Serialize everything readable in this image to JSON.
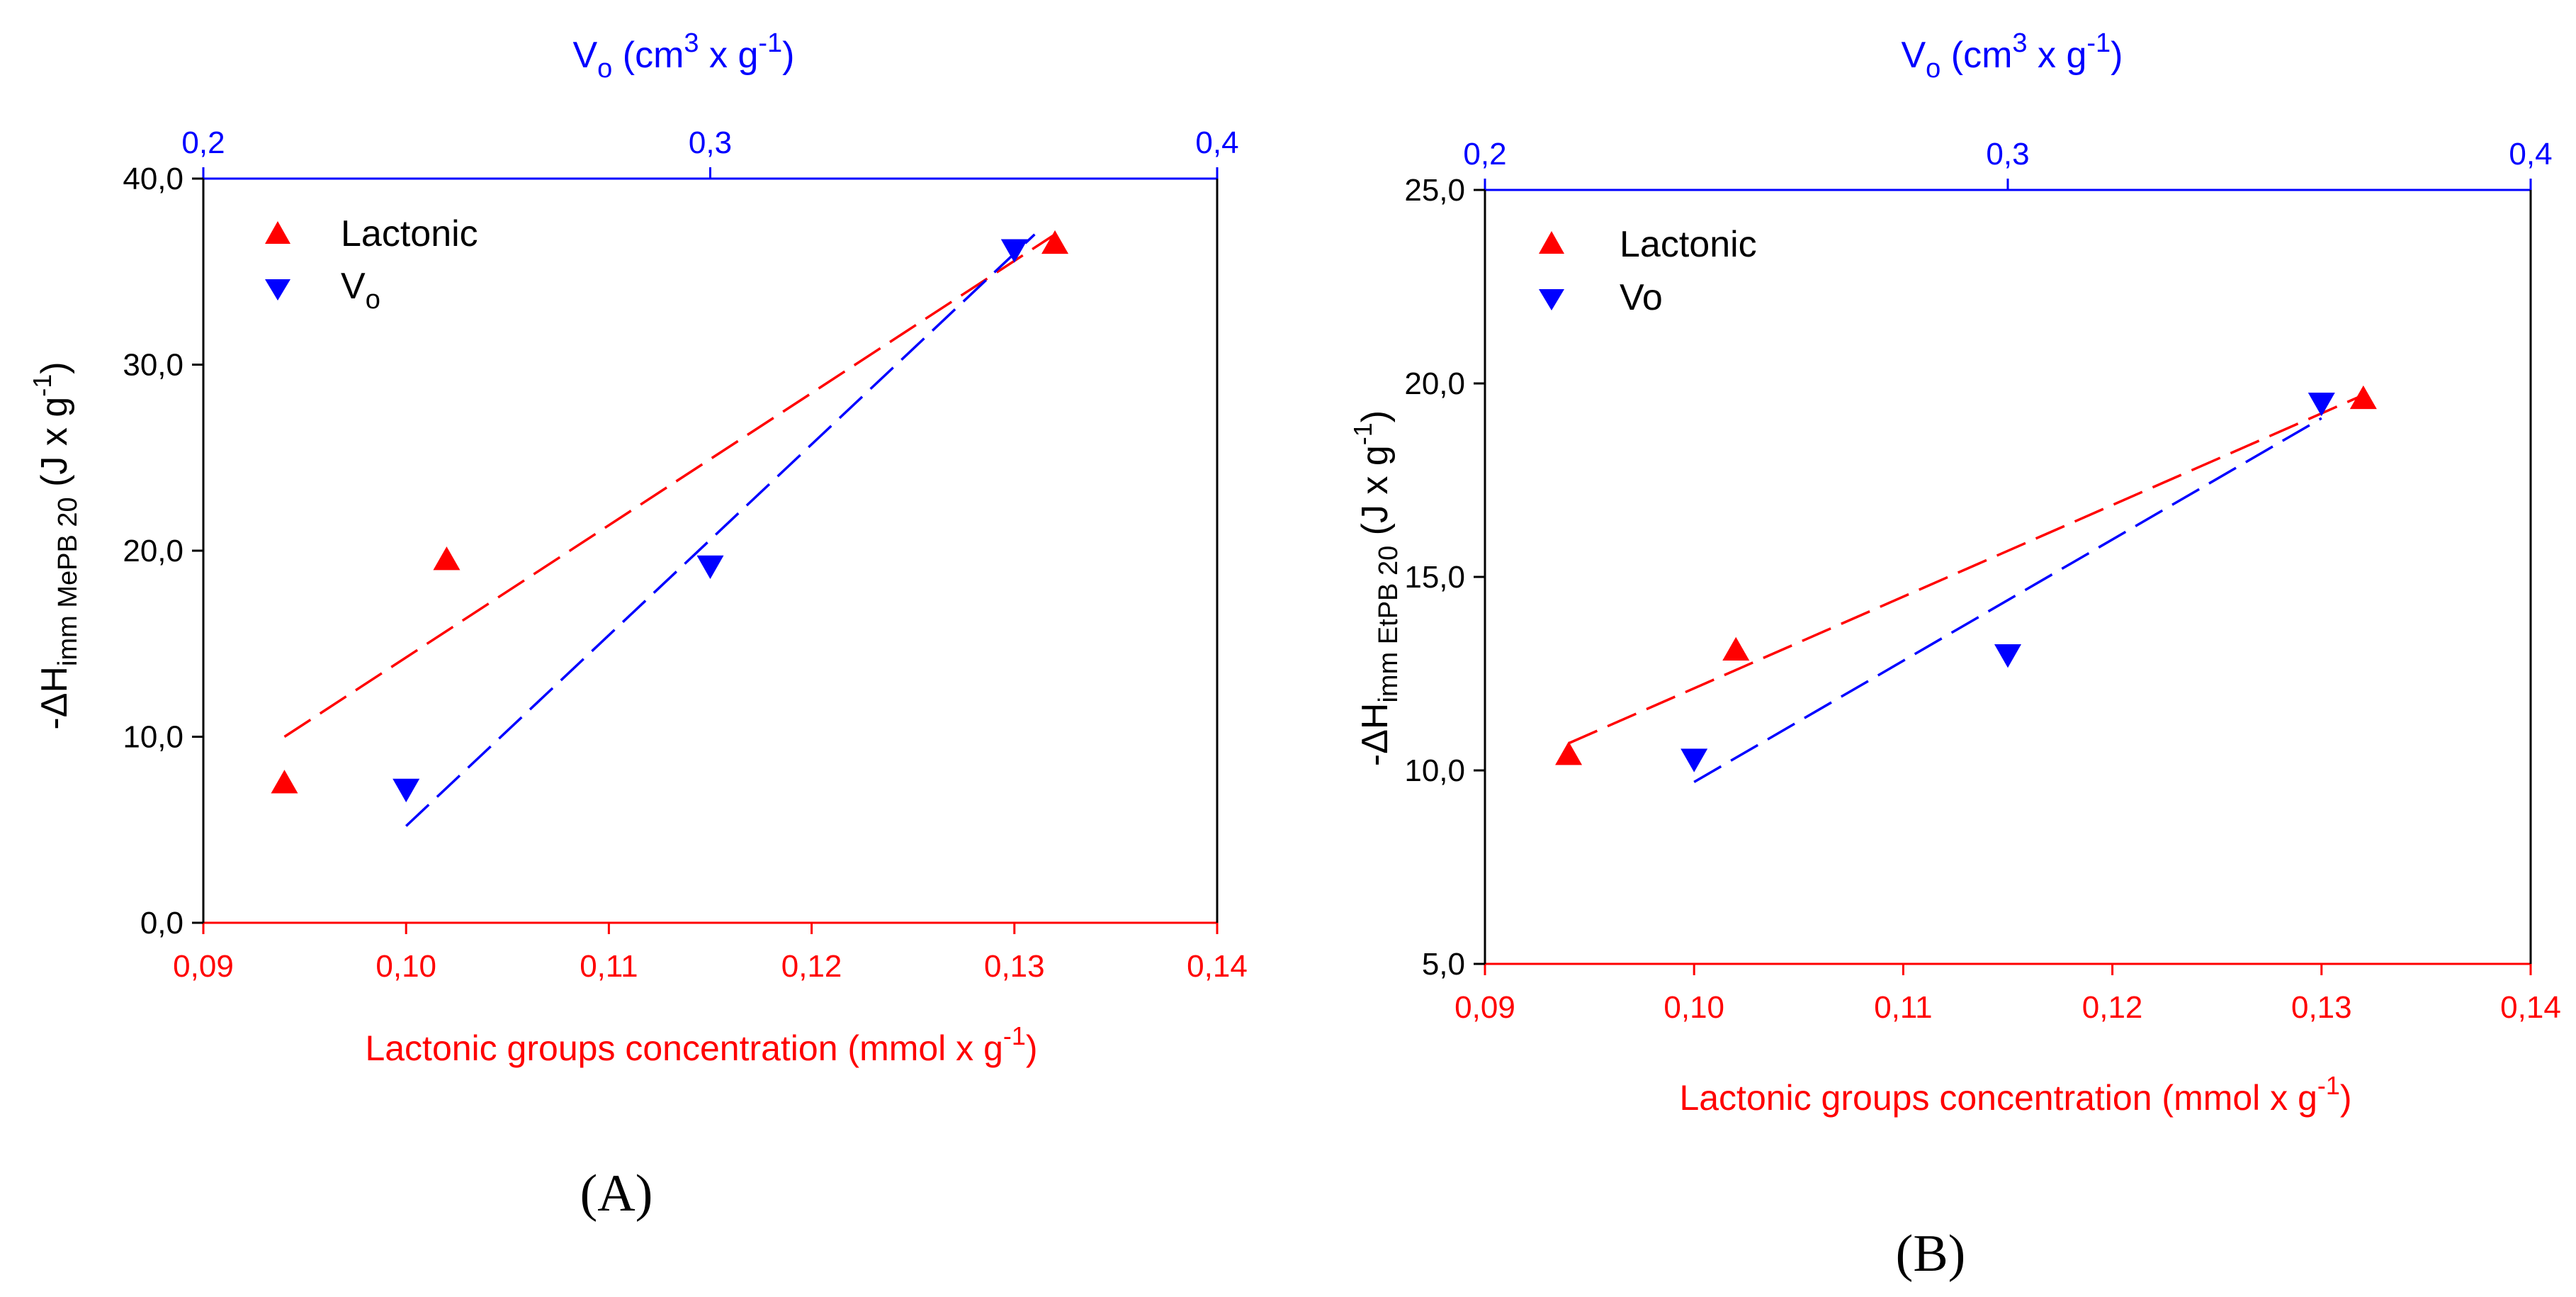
{
  "colors": {
    "lactonic": "#ff0000",
    "vo": "#0000ff",
    "axis": "#000000"
  },
  "chart_data": [
    {
      "panel": "A",
      "type": "scatter",
      "panel_label": "(A)",
      "xlabel": "Lactonic groups concentration (mmol x g",
      "xlabel_sup": "-1",
      "xlabel_end": ")",
      "x2label_prefix": "V",
      "x2label_sub": "o",
      "x2label_mid": " (cm",
      "x2label_sup": "3",
      "x2label_mid2": " x g",
      "x2label_sup2": "-1",
      "x2label_end": ")",
      "ylabel_prefix": "-ΔH",
      "ylabel_sub": "imm  MePB 20",
      "ylabel_mid": "  (J x g",
      "ylabel_sup": "-1",
      "ylabel_end": ")",
      "xlim": [
        0.09,
        0.14
      ],
      "x2lim": [
        0.2,
        0.4
      ],
      "ylim": [
        0,
        40
      ],
      "x_ticks": [
        0.09,
        0.1,
        0.11,
        0.12,
        0.13,
        0.14
      ],
      "x_tick_labels": [
        "0,09",
        "0,10",
        "0,11",
        "0,12",
        "0,13",
        "0,14"
      ],
      "x2_ticks": [
        0.2,
        0.3,
        0.4
      ],
      "x2_tick_labels": [
        "0,2",
        "0,3",
        "0,4"
      ],
      "y_ticks": [
        0,
        10,
        20,
        30,
        40
      ],
      "y_tick_labels": [
        "0,0",
        "10,0",
        "20,0",
        "30,0",
        "40,0"
      ],
      "legend": [
        {
          "label": "Lactonic",
          "sub": ""
        },
        {
          "label": "V",
          "sub": "o"
        }
      ],
      "series": [
        {
          "name": "Lactonic",
          "marker": "triangle-up",
          "color": "#ff0000",
          "axis": "bottom",
          "x": [
            0.094,
            0.102,
            0.132
          ],
          "y": [
            7.5,
            19.5,
            36.5
          ],
          "fit": {
            "x": [
              0.094,
              0.132
            ],
            "y": [
              10.0,
              37.0
            ]
          }
        },
        {
          "name": "Vo",
          "marker": "triangle-down",
          "color": "#0000ff",
          "axis": "bottom",
          "x": [
            0.1,
            0.115,
            0.13
          ],
          "y": [
            7.2,
            19.2,
            36.2
          ],
          "fit": {
            "x": [
              0.1,
              0.131
            ],
            "y": [
              5.2,
              37.0
            ]
          }
        }
      ]
    },
    {
      "panel": "B",
      "type": "scatter",
      "panel_label": "(B)",
      "xlabel": "Lactonic groups concentration (mmol x g",
      "xlabel_sup": "-1",
      "xlabel_end": ")",
      "x2label_prefix": "V",
      "x2label_sub": "o",
      "x2label_mid": " (cm",
      "x2label_sup": "3",
      "x2label_mid2": " x g",
      "x2label_sup2": "-1",
      "x2label_end": ")",
      "ylabel_prefix": "-ΔH",
      "ylabel_sub": "imm  EtPB 20",
      "ylabel_mid": "  (J x g",
      "ylabel_sup": "-1",
      "ylabel_end": ")",
      "xlim": [
        0.09,
        0.14
      ],
      "x2lim": [
        0.2,
        0.4
      ],
      "ylim": [
        5,
        25
      ],
      "x_ticks": [
        0.09,
        0.1,
        0.11,
        0.12,
        0.13,
        0.14
      ],
      "x_tick_labels": [
        "0,09",
        "0,10",
        "0,11",
        "0,12",
        "0,13",
        "0,14"
      ],
      "x2_ticks": [
        0.2,
        0.3,
        0.4
      ],
      "x2_tick_labels": [
        "0,2",
        "0,3",
        "0,4"
      ],
      "y_ticks": [
        5,
        10,
        15,
        20,
        25
      ],
      "y_tick_labels": [
        "5,0",
        "10,0",
        "15,0",
        "20,0",
        "25,0"
      ],
      "legend": [
        {
          "label": "Lactonic",
          "sub": ""
        },
        {
          "label": "Vo",
          "sub": ""
        }
      ],
      "series": [
        {
          "name": "Lactonic",
          "marker": "triangle-up",
          "color": "#ff0000",
          "axis": "bottom",
          "x": [
            0.094,
            0.102,
            0.132
          ],
          "y": [
            10.4,
            13.1,
            19.6
          ],
          "fit": {
            "x": [
              0.094,
              0.132
            ],
            "y": [
              10.7,
              19.7
            ]
          }
        },
        {
          "name": "Vo",
          "marker": "triangle-down",
          "color": "#0000ff",
          "axis": "bottom",
          "x": [
            0.1,
            0.115,
            0.13
          ],
          "y": [
            10.3,
            13.0,
            19.5
          ],
          "fit": {
            "x": [
              0.1,
              0.13
            ],
            "y": [
              9.7,
              19.1
            ]
          }
        }
      ]
    }
  ]
}
